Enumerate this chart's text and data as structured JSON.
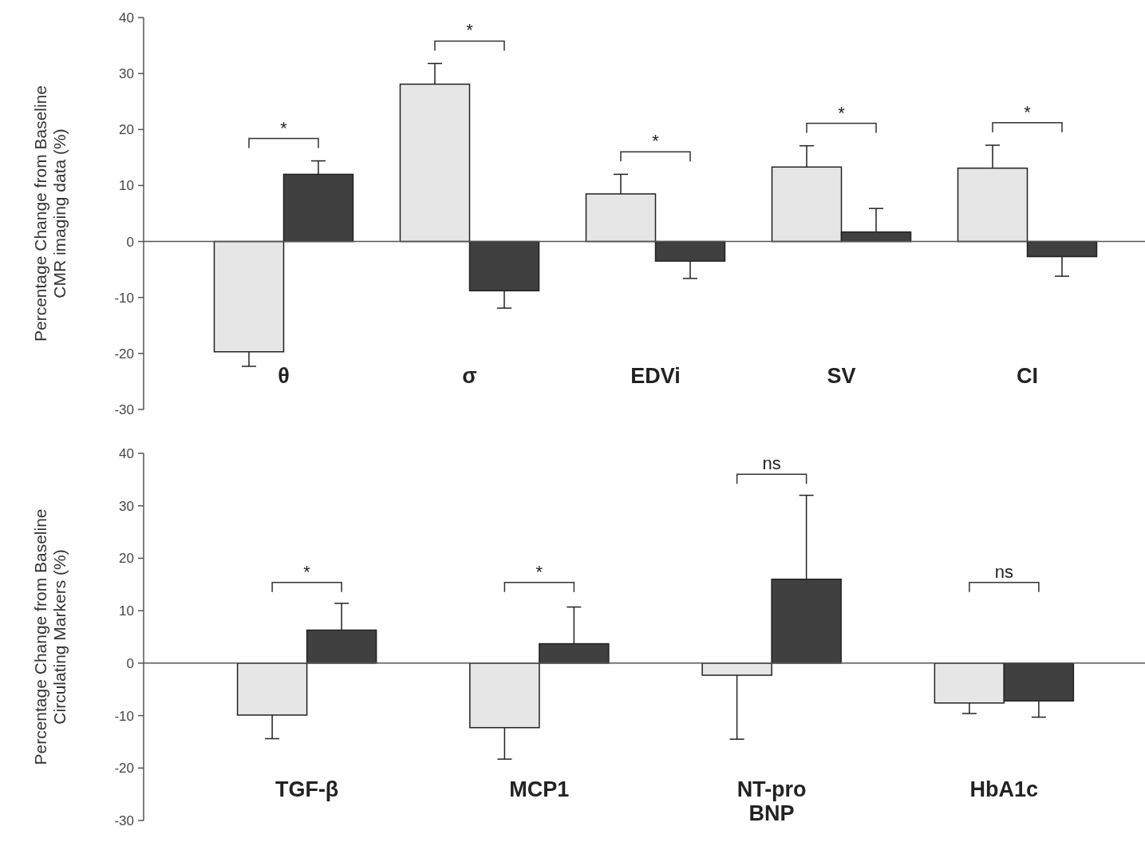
{
  "chart_data": [
    {
      "type": "bar",
      "ylabel": "Percentage Change from Baseline\nCMR imaging data (%)",
      "categories": [
        "θ",
        "σ",
        "EDVi",
        "SV",
        "CI"
      ],
      "series": [
        {
          "color": "#e6e6e6",
          "values": [
            -19.7,
            28.1,
            8.5,
            13.3,
            13.1
          ],
          "errors": [
            [
              -22.3,
              -19.7
            ],
            [
              28.1,
              31.8
            ],
            [
              8.5,
              12
            ],
            [
              13.3,
              17.1
            ],
            [
              13.1,
              17.2
            ]
          ]
        },
        {
          "color": "#404040",
          "values": [
            12,
            -8.8,
            -3.5,
            1.7,
            -2.7
          ],
          "errors": [
            [
              12,
              14.4
            ],
            [
              -11.9,
              -8.8
            ],
            [
              -6.6,
              -3.5
            ],
            [
              1.7,
              5.9
            ],
            [
              -6.2,
              -2.7
            ]
          ]
        }
      ],
      "ylim": [
        -30,
        40
      ],
      "yticks": [
        -30,
        -20,
        -10,
        0,
        10,
        20,
        30,
        40
      ],
      "annotations": [
        "*",
        "*",
        "*",
        "*",
        "*"
      ]
    },
    {
      "type": "bar",
      "ylabel": "Percentage Change from Baseline\nCirculating Markers  (%)",
      "categories": [
        "TGF-β",
        "MCP1",
        "NT-pro BNP",
        "HbA1c"
      ],
      "series": [
        {
          "color": "#e6e6e6",
          "values": [
            -9.9,
            -12.3,
            -2.3,
            -7.6
          ],
          "errors": [
            [
              -14.4,
              -9.9
            ],
            [
              -18.3,
              -12.3
            ],
            [
              -14.5,
              -2.3
            ],
            [
              -9.6,
              -7.6
            ]
          ]
        },
        {
          "color": "#404040",
          "values": [
            6.3,
            3.7,
            16,
            -7.2
          ],
          "errors": [
            [
              6.3,
              11.4
            ],
            [
              3.7,
              10.7
            ],
            [
              16,
              32
            ],
            [
              -10.3,
              -7.2
            ]
          ]
        }
      ],
      "ylim": [
        -30,
        40
      ],
      "yticks": [
        -30,
        -20,
        -10,
        0,
        10,
        20,
        30,
        40
      ],
      "annotations": [
        "*",
        "*",
        "ns",
        "ns"
      ]
    }
  ]
}
